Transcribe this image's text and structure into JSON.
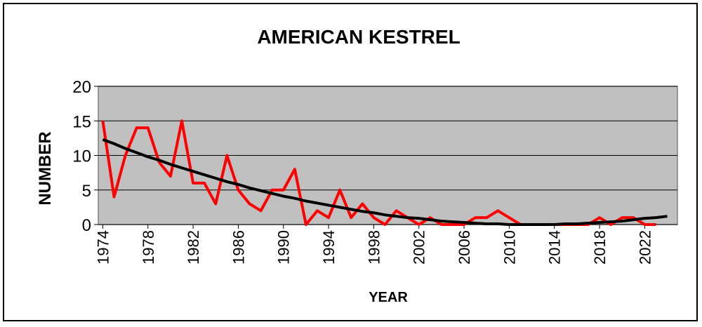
{
  "chart_data": {
    "type": "line",
    "title": "AMERICAN KESTREL",
    "xlabel": "YEAR",
    "ylabel": "NUMBER",
    "x": [
      1974,
      1975,
      1976,
      1977,
      1978,
      1979,
      1980,
      1981,
      1982,
      1983,
      1984,
      1985,
      1986,
      1987,
      1988,
      1989,
      1990,
      1991,
      1992,
      1993,
      1994,
      1995,
      1996,
      1997,
      1998,
      1999,
      2000,
      2001,
      2002,
      2003,
      2004,
      2005,
      2006,
      2007,
      2008,
      2009,
      2010,
      2011,
      2012,
      2013,
      2014,
      2015,
      2016,
      2017,
      2018,
      2019,
      2020,
      2021,
      2022,
      2023,
      2024
    ],
    "series": [
      {
        "color": "#ff0000",
        "values": [
          15,
          4,
          10,
          14,
          14,
          9,
          7,
          15,
          6,
          6,
          3,
          10,
          5,
          3,
          2,
          5,
          5,
          8,
          0,
          2,
          1,
          5,
          1,
          3,
          1,
          0,
          2,
          1,
          0,
          1,
          0,
          0,
          0,
          1,
          1,
          2,
          1,
          0,
          0,
          0,
          0,
          0,
          0,
          0,
          1,
          0,
          1,
          1,
          0,
          0,
          null
        ]
      },
      {
        "color": "#000000",
        "values": [
          12.3,
          11.7,
          11.0,
          10.4,
          9.8,
          9.3,
          8.7,
          8.2,
          7.7,
          7.2,
          6.7,
          6.2,
          5.8,
          5.3,
          4.9,
          4.5,
          4.1,
          3.8,
          3.4,
          3.1,
          2.8,
          2.5,
          2.2,
          1.9,
          1.7,
          1.4,
          1.2,
          1.0,
          0.9,
          0.7,
          0.5,
          0.4,
          0.3,
          0.2,
          0.1,
          0.1,
          0,
          0,
          0,
          0,
          0,
          0.1,
          0.1,
          0.2,
          0.3,
          0.4,
          0.5,
          0.7,
          0.9,
          1.0,
          1.2
        ]
      }
    ],
    "xlim": [
      1973.6,
      2024.9
    ],
    "xticks": [
      1974,
      1978,
      1982,
      1986,
      1990,
      1994,
      1998,
      2002,
      2006,
      2010,
      2014,
      2018,
      2022
    ],
    "ylim": [
      0,
      20
    ],
    "yticks": [
      0,
      5,
      10,
      15,
      20
    ],
    "grid": true,
    "plot_background": "#c0c0c0"
  }
}
